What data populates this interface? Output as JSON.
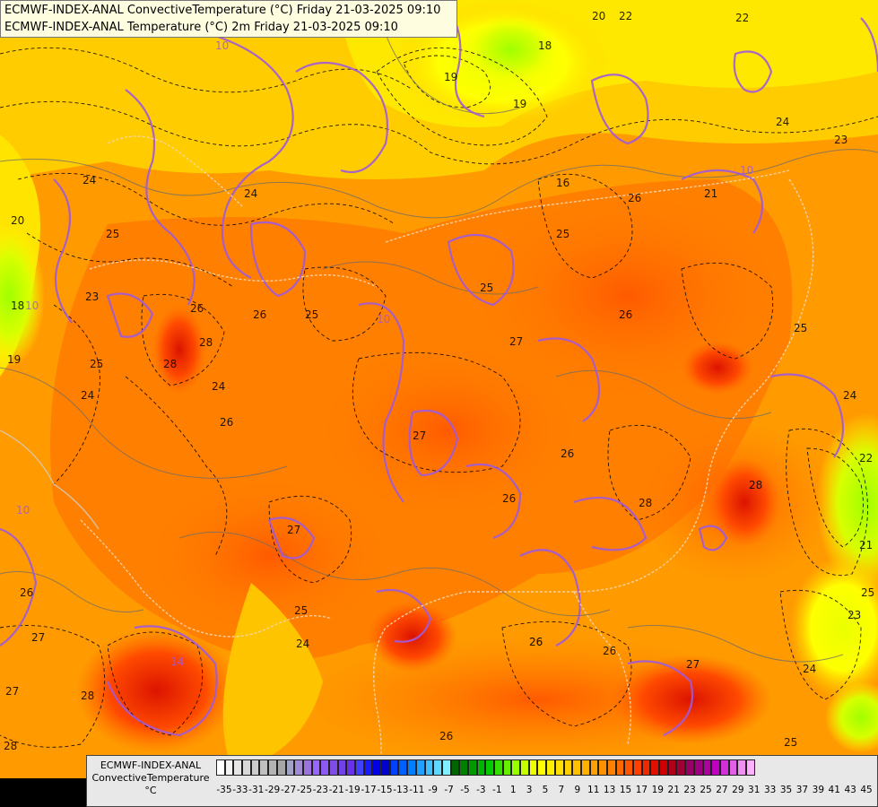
{
  "title": {
    "line1": "ECMWF-INDEX-ANAL ConvectiveTemperature (°C) Friday 21-03-2025 09:10",
    "line2": "ECMWF-INDEX-ANAL Temperature (°C) 2m Friday 21-03-2025 09:10"
  },
  "legend": {
    "line1": "ECMWF-INDEX-ANAL",
    "line2": "ConvectiveTemperature",
    "unit": "°C",
    "ticks": [
      "-35",
      "-33",
      "-31",
      "-29",
      "-27",
      "-25",
      "-23",
      "-21",
      "-19",
      "-17",
      "-15",
      "-13",
      "-11",
      "-9",
      "-7",
      "-5",
      "-3",
      "-1",
      "1",
      "3",
      "5",
      "7",
      "9",
      "11",
      "13",
      "15",
      "17",
      "19",
      "21",
      "23",
      "25",
      "27",
      "29",
      "31",
      "33",
      "35",
      "37",
      "39",
      "41",
      "43",
      "45"
    ],
    "colors": [
      "#ffffff",
      "#f2f2f2",
      "#e6e6e6",
      "#d9d9d9",
      "#cccccc",
      "#bfbfbf",
      "#b3b3b3",
      "#a6a6a6",
      "#a3a3c8",
      "#a08cd2",
      "#9b73dc",
      "#9966ff",
      "#8c59f2",
      "#7f4ce6",
      "#7340e6",
      "#6633e6",
      "#4040ff",
      "#1a1aff",
      "#0000e6",
      "#0000cc",
      "#0040ff",
      "#0060ff",
      "#0080ff",
      "#20a0ff",
      "#40c0ff",
      "#60d8ff",
      "#80f0ff",
      "#006600",
      "#008000",
      "#009900",
      "#00b300",
      "#00cc00",
      "#33e000",
      "#66f000",
      "#99ff00",
      "#c8ff00",
      "#ecff00",
      "#ffff00",
      "#fff000",
      "#ffe000",
      "#ffd000",
      "#ffc000",
      "#ffb000",
      "#ffa000",
      "#ff9000",
      "#ff7f00",
      "#ff6a00",
      "#ff5500",
      "#ff4000",
      "#f02a00",
      "#e01000",
      "#cc0000",
      "#b3001a",
      "#a00033",
      "#990066",
      "#a00080",
      "#b000a0",
      "#c000c0",
      "#d030d8",
      "#e060e8",
      "#f090f0",
      "#ffb0ff"
    ]
  },
  "map": {
    "contour_labels": [
      "20",
      "22",
      "22",
      "19",
      "18",
      "24",
      "23",
      "21",
      "20",
      "24",
      "25",
      "24",
      "26",
      "25",
      "25",
      "23",
      "26",
      "28",
      "25",
      "26",
      "26",
      "25",
      "25",
      "27",
      "26",
      "24",
      "26",
      "26",
      "24",
      "27",
      "28",
      "26",
      "28",
      "27",
      "25",
      "24",
      "26",
      "26",
      "24",
      "27",
      "28",
      "27",
      "28",
      "25",
      "24",
      "23",
      "22",
      "25",
      "21",
      "19",
      "10",
      "10",
      "10",
      "10",
      "16",
      "19",
      "14",
      "10",
      "26",
      "27",
      "28",
      "26",
      "18"
    ]
  }
}
